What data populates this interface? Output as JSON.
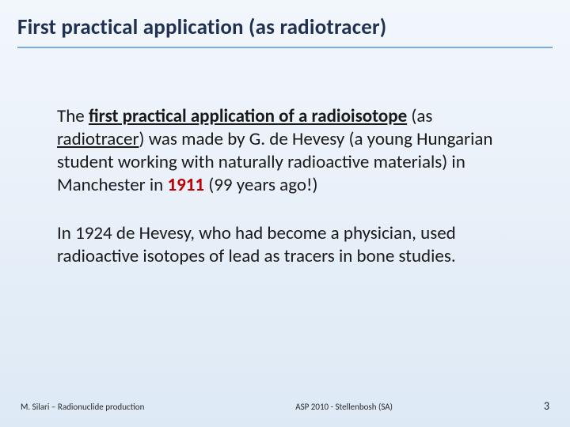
{
  "slide": {
    "title": "First practical application (as radiotracer)",
    "body": {
      "p1": {
        "lead": "The ",
        "bold_under": "first practical application of a radioisotope",
        "after_bold": " (as ",
        "radiotracer": "radiotracer",
        "rest1": ") was made by G. de Hevesy (a young Hungarian student working with naturally radioactive materials) in Manchester in ",
        "year": "1911",
        "tail": " (99 years ago!)"
      },
      "p2": "In 1924 de Hevesy, who had become a physician, used radioactive isotopes of lead as tracers in bone studies."
    },
    "footer": {
      "left": "M. Silari – Radionuclide production",
      "center": "ASP 2010 - Stellenbosh (SA)",
      "page": "3"
    }
  },
  "style": {
    "bg_gradient_top": "#f2f7fc",
    "bg_gradient_bottom": "#dde9f5",
    "title_color": "#203050",
    "title_underline_color": "#7daed8",
    "body_color": "#1a1a1a",
    "accent_red": "#c00000",
    "title_fontsize": 27,
    "body_fontsize": 23,
    "footer_fontsize": 11,
    "page_num_fontsize": 14
  }
}
